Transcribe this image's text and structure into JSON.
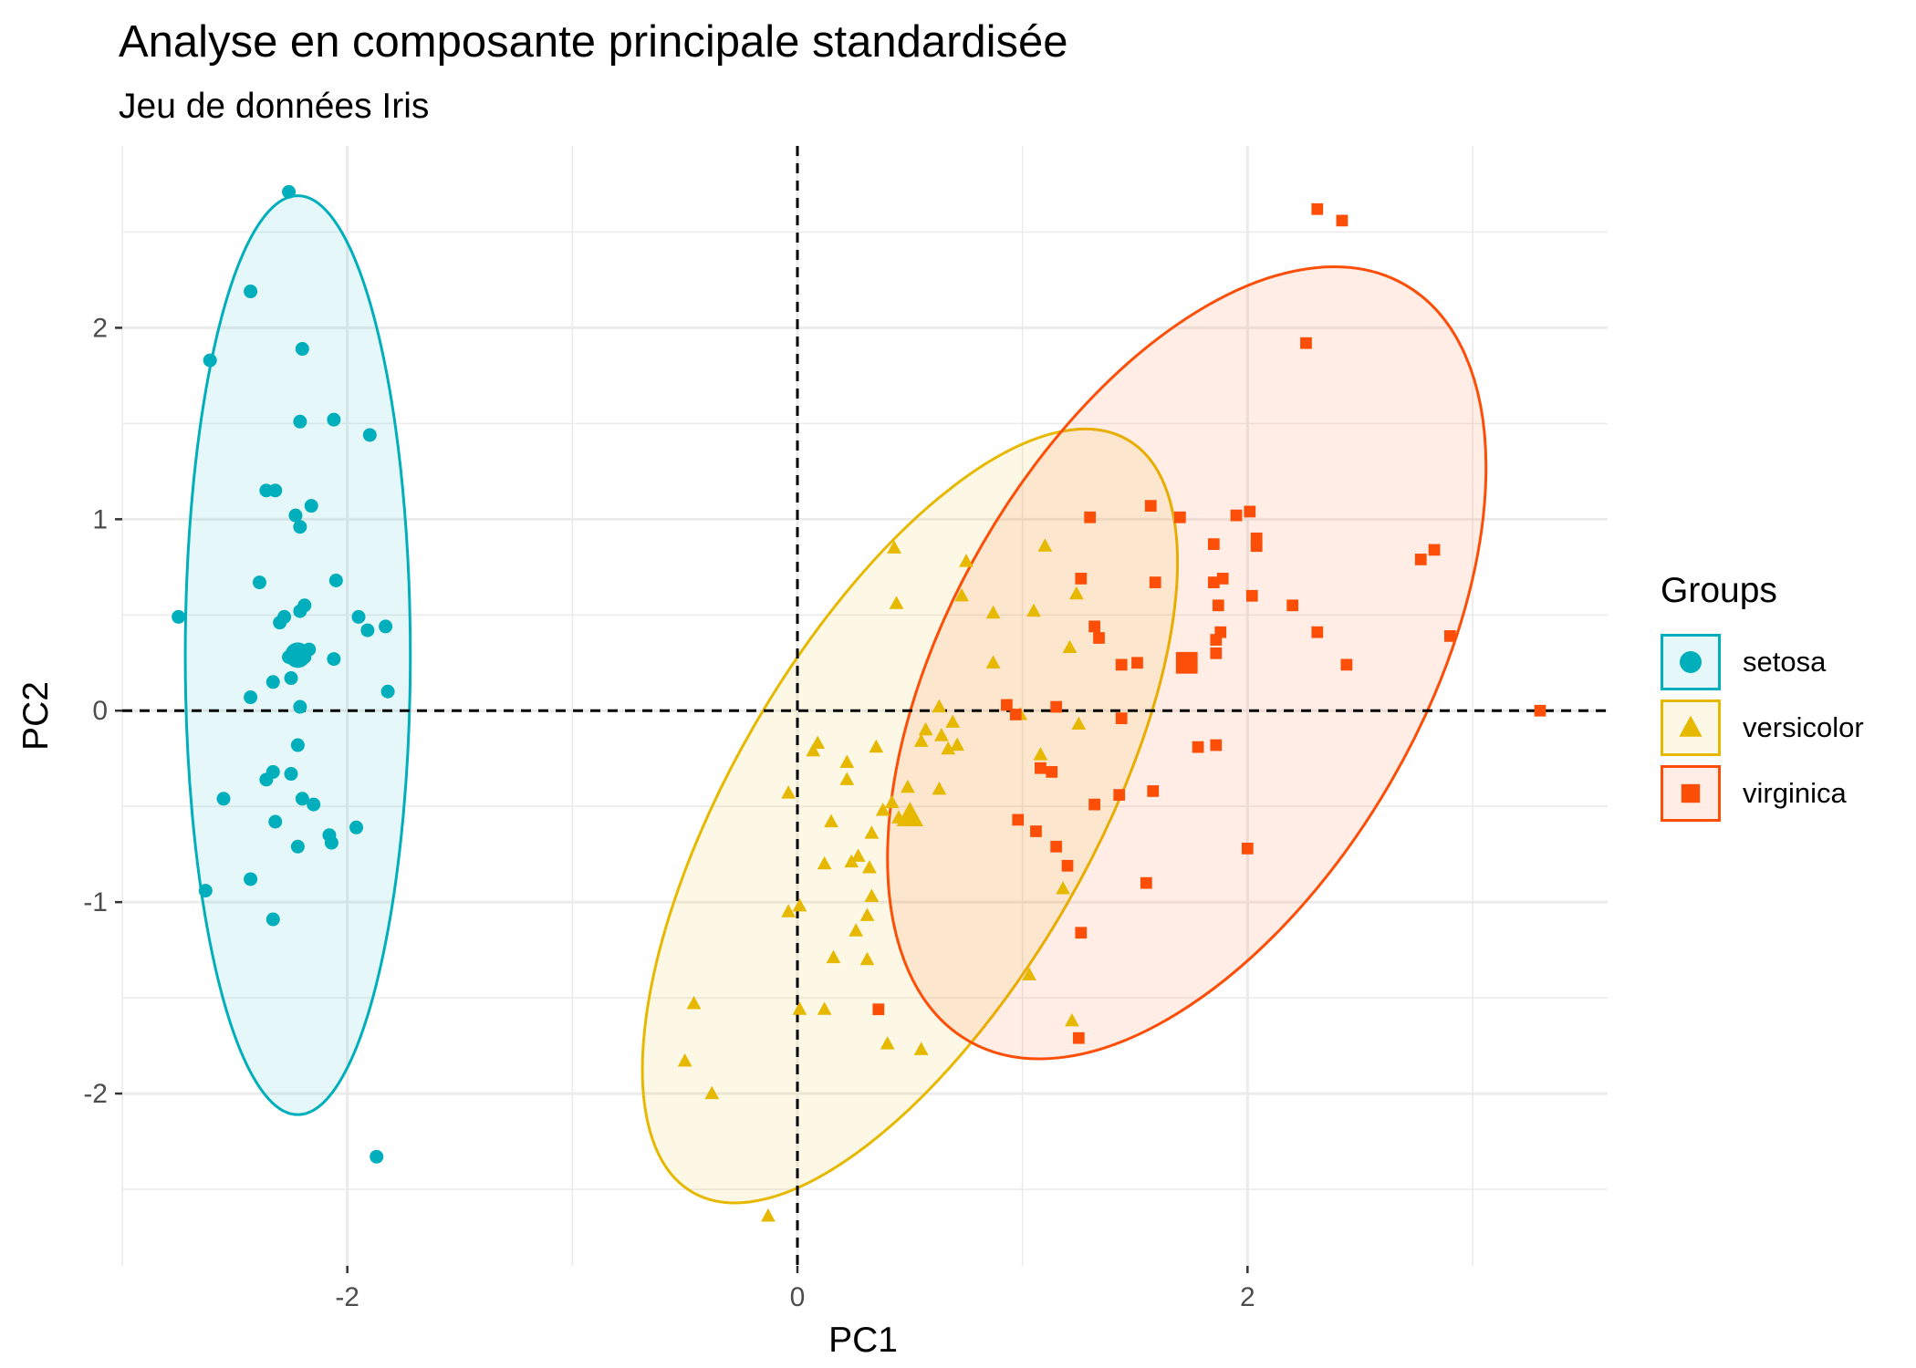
{
  "chart_data": {
    "type": "scatter",
    "title": "Analyse en composante principale standardisée",
    "subtitle": "Jeu de données Iris",
    "xlabel": "PC1",
    "ylabel": "PC2",
    "xlim": [
      -3.0,
      3.6
    ],
    "ylim": [
      -2.9,
      2.95
    ],
    "x_ticks": [
      -2,
      0,
      2
    ],
    "y_ticks": [
      -2,
      -1,
      0,
      1,
      2
    ],
    "grid": true,
    "reference_lines": {
      "x": 0,
      "y": 0
    },
    "legend": {
      "title": "Groups",
      "position": "right"
    },
    "series": [
      {
        "name": "setosa",
        "color": "#00AFBB",
        "shape": "circle",
        "mean": [
          -2.22,
          0.29
        ],
        "ellipse": {
          "cx": -2.22,
          "cy": 0.29,
          "rx": 0.5,
          "ry": 2.4,
          "angle": 0
        },
        "points": [
          [
            -2.26,
            2.71
          ],
          [
            -2.43,
            2.19
          ],
          [
            -2.61,
            1.83
          ],
          [
            -2.2,
            1.89
          ],
          [
            -2.21,
            1.51
          ],
          [
            -2.06,
            1.52
          ],
          [
            -1.9,
            1.44
          ],
          [
            -2.36,
            1.15
          ],
          [
            -2.32,
            1.15
          ],
          [
            -2.16,
            1.07
          ],
          [
            -2.23,
            1.02
          ],
          [
            -2.21,
            0.96
          ],
          [
            -2.39,
            0.67
          ],
          [
            -2.05,
            0.68
          ],
          [
            -2.75,
            0.49
          ],
          [
            -2.28,
            0.49
          ],
          [
            -2.19,
            0.55
          ],
          [
            -2.3,
            0.46
          ],
          [
            -2.21,
            0.52
          ],
          [
            -1.95,
            0.49
          ],
          [
            -1.83,
            0.44
          ],
          [
            -1.91,
            0.42
          ],
          [
            -2.24,
            0.3
          ],
          [
            -2.17,
            0.32
          ],
          [
            -2.19,
            0.28
          ],
          [
            -2.26,
            0.28
          ],
          [
            -2.06,
            0.27
          ],
          [
            -2.33,
            0.15
          ],
          [
            -2.25,
            0.17
          ],
          [
            -1.82,
            0.1
          ],
          [
            -2.43,
            0.07
          ],
          [
            -2.21,
            0.02
          ],
          [
            -2.22,
            -0.18
          ],
          [
            -2.33,
            -0.32
          ],
          [
            -2.36,
            -0.36
          ],
          [
            -2.25,
            -0.33
          ],
          [
            -2.55,
            -0.46
          ],
          [
            -2.2,
            -0.46
          ],
          [
            -2.15,
            -0.49
          ],
          [
            -2.32,
            -0.58
          ],
          [
            -2.08,
            -0.65
          ],
          [
            -1.96,
            -0.61
          ],
          [
            -2.07,
            -0.69
          ],
          [
            -2.22,
            -0.71
          ],
          [
            -2.43,
            -0.88
          ],
          [
            -2.63,
            -0.94
          ],
          [
            -2.33,
            -1.09
          ],
          [
            -1.87,
            -2.33
          ]
        ]
      },
      {
        "name": "versicolor",
        "color": "#E7B800",
        "shape": "triangle",
        "mean": [
          0.5,
          -0.55
        ],
        "ellipse": {
          "cx": 0.5,
          "cy": -0.55,
          "rx": 0.8,
          "ry": 2.27,
          "angle": 30
        },
        "points": [
          [
            0.43,
            0.85
          ],
          [
            0.75,
            0.78
          ],
          [
            1.1,
            0.86
          ],
          [
            0.73,
            0.6
          ],
          [
            0.87,
            0.51
          ],
          [
            1.05,
            0.52
          ],
          [
            1.24,
            0.61
          ],
          [
            0.44,
            0.56
          ],
          [
            1.21,
            0.33
          ],
          [
            0.87,
            0.25
          ],
          [
            0.63,
            0.02
          ],
          [
            0.69,
            -0.06
          ],
          [
            0.57,
            -0.1
          ],
          [
            0.64,
            -0.13
          ],
          [
            0.71,
            -0.18
          ],
          [
            0.67,
            -0.2
          ],
          [
            0.35,
            -0.19
          ],
          [
            0.55,
            -0.16
          ],
          [
            0.99,
            -0.02
          ],
          [
            1.25,
            -0.07
          ],
          [
            0.09,
            -0.17
          ],
          [
            0.07,
            -0.21
          ],
          [
            0.22,
            -0.27
          ],
          [
            0.22,
            -0.36
          ],
          [
            -0.04,
            -0.43
          ],
          [
            0.49,
            -0.4
          ],
          [
            0.63,
            -0.41
          ],
          [
            1.08,
            -0.23
          ],
          [
            0.15,
            -0.58
          ],
          [
            0.38,
            -0.52
          ],
          [
            0.45,
            -0.56
          ],
          [
            0.42,
            -0.48
          ],
          [
            0.5,
            -0.53
          ],
          [
            0.33,
            -0.64
          ],
          [
            0.24,
            -0.79
          ],
          [
            0.32,
            -0.82
          ],
          [
            0.27,
            -0.76
          ],
          [
            0.12,
            -0.8
          ],
          [
            0.33,
            -0.97
          ],
          [
            1.18,
            -0.93
          ],
          [
            0.31,
            -1.07
          ],
          [
            -0.04,
            -1.05
          ],
          [
            0.01,
            -1.02
          ],
          [
            0.26,
            -1.15
          ],
          [
            0.16,
            -1.29
          ],
          [
            0.31,
            -1.3
          ],
          [
            1.03,
            -1.38
          ],
          [
            -0.46,
            -1.53
          ],
          [
            0.01,
            -1.56
          ],
          [
            0.12,
            -1.56
          ],
          [
            1.22,
            -1.62
          ],
          [
            0.4,
            -1.74
          ],
          [
            0.55,
            -1.77
          ],
          [
            -0.5,
            -1.83
          ],
          [
            -0.38,
            -2.0
          ],
          [
            -0.13,
            -2.64
          ]
        ]
      },
      {
        "name": "virginica",
        "color": "#FC4E07",
        "shape": "square",
        "mean": [
          1.73,
          0.25
        ],
        "ellipse": {
          "cx": 1.73,
          "cy": 0.25,
          "rx": 1.05,
          "ry": 2.28,
          "angle": 30
        },
        "points": [
          [
            2.31,
            2.62
          ],
          [
            2.42,
            2.56
          ],
          [
            2.26,
            1.92
          ],
          [
            1.57,
            1.07
          ],
          [
            1.7,
            1.01
          ],
          [
            1.95,
            1.02
          ],
          [
            2.01,
            1.04
          ],
          [
            1.3,
            1.01
          ],
          [
            2.04,
            0.9
          ],
          [
            2.04,
            0.86
          ],
          [
            1.85,
            0.87
          ],
          [
            2.83,
            0.84
          ],
          [
            2.77,
            0.79
          ],
          [
            1.26,
            0.69
          ],
          [
            1.59,
            0.67
          ],
          [
            1.85,
            0.67
          ],
          [
            1.89,
            0.69
          ],
          [
            2.02,
            0.6
          ],
          [
            2.2,
            0.55
          ],
          [
            1.87,
            0.55
          ],
          [
            1.88,
            0.41
          ],
          [
            1.86,
            0.37
          ],
          [
            1.32,
            0.44
          ],
          [
            1.34,
            0.38
          ],
          [
            2.31,
            0.41
          ],
          [
            2.9,
            0.39
          ],
          [
            1.86,
            0.3
          ],
          [
            1.73,
            0.25
          ],
          [
            1.51,
            0.25
          ],
          [
            1.44,
            0.24
          ],
          [
            2.44,
            0.24
          ],
          [
            1.15,
            0.02
          ],
          [
            0.93,
            0.03
          ],
          [
            0.97,
            -0.02
          ],
          [
            1.44,
            -0.04
          ],
          [
            3.3,
            0.0
          ],
          [
            1.78,
            -0.19
          ],
          [
            1.86,
            -0.18
          ],
          [
            1.08,
            -0.3
          ],
          [
            1.13,
            -0.32
          ],
          [
            1.43,
            -0.44
          ],
          [
            1.58,
            -0.42
          ],
          [
            1.32,
            -0.49
          ],
          [
            0.98,
            -0.57
          ],
          [
            1.06,
            -0.63
          ],
          [
            1.15,
            -0.71
          ],
          [
            2.0,
            -0.72
          ],
          [
            1.2,
            -0.81
          ],
          [
            1.55,
            -0.9
          ],
          [
            1.26,
            -1.16
          ],
          [
            0.36,
            -1.56
          ],
          [
            1.25,
            -1.71
          ]
        ]
      }
    ]
  }
}
